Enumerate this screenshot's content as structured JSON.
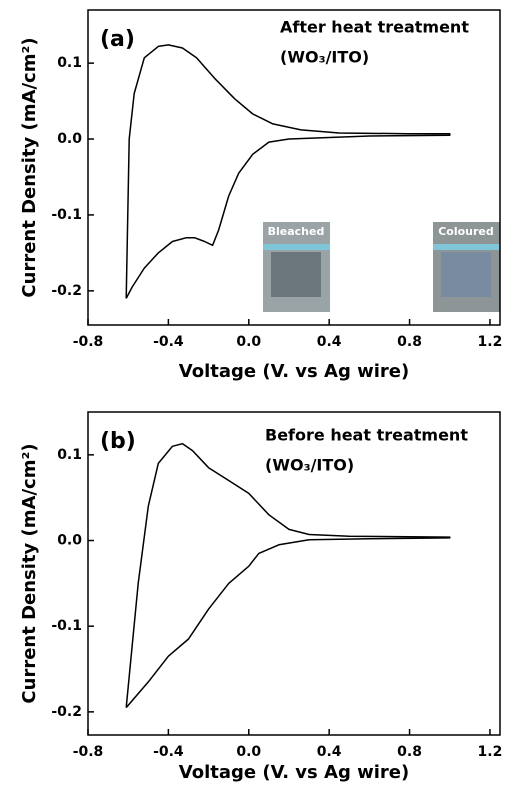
{
  "chart_data": [
    {
      "type": "line",
      "panel": "(a)",
      "annotations": [
        "After heat treatment",
        "(WO₃/ITO)"
      ],
      "insets": [
        "Bleached",
        "Coloured"
      ],
      "x_label": "Voltage (V. vs Ag wire)",
      "y_label": "Current Density (mA/cm²)",
      "xlim": [
        -0.8,
        1.25
      ],
      "ylim": [
        -0.245,
        0.17
      ],
      "xticks": [
        -0.8,
        -0.4,
        {
          "value": 0,
          "label": "0.0"
        },
        0.4,
        0.8,
        1.2
      ],
      "yticks": [
        -0.2,
        -0.1,
        {
          "value": 0,
          "label": "0.0"
        },
        0.1
      ],
      "series": [
        {
          "color": "#000000",
          "x": [
            -0.61,
            -0.595,
            -0.57,
            -0.52,
            -0.45,
            -0.4,
            -0.33,
            -0.26,
            -0.17,
            -0.07,
            0.02,
            0.12,
            0.26,
            0.45,
            0.79,
            1.0,
            1.0,
            0.6,
            0.4,
            0.2,
            0.1,
            0.02,
            -0.05,
            -0.1,
            -0.15,
            -0.18,
            -0.22,
            -0.27,
            -0.31,
            -0.38,
            -0.45,
            -0.52,
            -0.58,
            -0.61
          ],
          "values": [
            -0.21,
            0.0,
            0.06,
            0.107,
            0.122,
            0.124,
            0.12,
            0.107,
            0.08,
            0.053,
            0.033,
            0.02,
            0.012,
            0.008,
            0.007,
            0.007,
            0.005,
            0.004,
            0.002,
            0.0,
            -0.004,
            -0.02,
            -0.045,
            -0.075,
            -0.12,
            -0.14,
            -0.135,
            -0.13,
            -0.13,
            -0.135,
            -0.15,
            -0.17,
            -0.195,
            -0.21
          ]
        }
      ]
    },
    {
      "type": "line",
      "panel": "(b)",
      "annotations": [
        "Before heat treatment",
        "(WO₃/ITO)"
      ],
      "x_label": "Voltage (V. vs Ag wire)",
      "y_label": "Current Density (mA/cm²)",
      "xlim": [
        -0.8,
        1.25
      ],
      "ylim": [
        -0.227,
        0.15
      ],
      "xticks": [
        -0.8,
        -0.4,
        {
          "value": 0,
          "label": "0.0"
        },
        0.4,
        0.8,
        1.2
      ],
      "yticks": [
        -0.2,
        -0.1,
        {
          "value": 0,
          "label": "0.0"
        },
        0.1
      ],
      "series": [
        {
          "color": "#000000",
          "x": [
            -0.61,
            -0.55,
            -0.5,
            -0.45,
            -0.38,
            -0.33,
            -0.28,
            -0.2,
            -0.1,
            0.0,
            0.1,
            0.2,
            0.3,
            0.5,
            1.0,
            1.0,
            0.6,
            0.3,
            0.15,
            0.05,
            0.0,
            -0.1,
            -0.2,
            -0.3,
            -0.4,
            -0.5,
            -0.61
          ],
          "values": [
            -0.195,
            -0.05,
            0.04,
            0.09,
            0.11,
            0.113,
            0.105,
            0.085,
            0.07,
            0.055,
            0.03,
            0.013,
            0.007,
            0.005,
            0.004,
            0.003,
            0.002,
            0.001,
            -0.005,
            -0.015,
            -0.03,
            -0.05,
            -0.08,
            -0.115,
            -0.135,
            -0.165,
            -0.195
          ]
        }
      ]
    }
  ]
}
